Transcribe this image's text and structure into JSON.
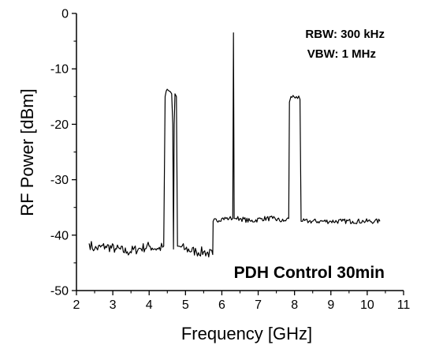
{
  "chart_data": {
    "type": "line",
    "xlabel": "Frequency [GHz]",
    "ylabel": "RF Power [dBm]",
    "xlim": [
      2,
      11
    ],
    "ylim": [
      -50,
      0
    ],
    "x_ticks": [
      "2",
      "3",
      "4",
      "5",
      "6",
      "7",
      "8",
      "9",
      "10",
      "11"
    ],
    "y_ticks": [
      "0",
      "-10",
      "-20",
      "-30",
      "-40",
      "-50"
    ],
    "grid": false,
    "line_color": "#000000",
    "annotations": {
      "rbw": "RBW: 300 kHz",
      "vbw": "VBW: 1 MHz",
      "label": "PDH Control 30min"
    },
    "series": [
      {
        "x": [
          2.35,
          2.5,
          2.8,
          3.1,
          3.4,
          3.7,
          4.0,
          4.25,
          4.4,
          4.44,
          4.47,
          4.55,
          4.62,
          4.65,
          4.67,
          4.69,
          4.71,
          4.75,
          4.78,
          4.82,
          5.0,
          5.3,
          5.5,
          5.75,
          5.76,
          6.0,
          6.2,
          6.3,
          6.32,
          6.34,
          6.38,
          6.5,
          6.8,
          7.1,
          7.4,
          7.7,
          7.84,
          7.86,
          7.9,
          8.05,
          8.15,
          8.18,
          8.22,
          8.4,
          8.7,
          9.0,
          9.3,
          9.6,
          9.9,
          10.2,
          10.35
        ],
        "y": [
          -41.5,
          -42.5,
          -42,
          -42.5,
          -43,
          -42.5,
          -42,
          -42.5,
          -42,
          -15,
          -14,
          -14,
          -14.5,
          -20,
          -42.5,
          -20,
          -14.5,
          -15,
          -42,
          -42,
          -42.5,
          -43,
          -43,
          -43.5,
          -37.5,
          -37,
          -37,
          -37,
          -3.5,
          -37,
          -37,
          -37,
          -37.5,
          -37,
          -37,
          -37.5,
          -37,
          -16,
          -15,
          -15,
          -15.5,
          -37.5,
          -37.5,
          -37.5,
          -37.5,
          -37.5,
          -37.5,
          -37.5,
          -37.5,
          -37.5,
          -37.5
        ]
      }
    ]
  }
}
